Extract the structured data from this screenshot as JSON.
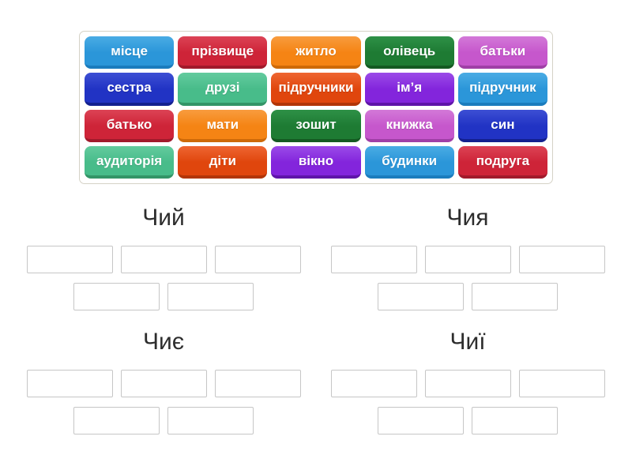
{
  "palette": {
    "lightblue": {
      "top": "#4aace4",
      "base": "#2b96d9",
      "edge": "#1b7cbd"
    },
    "red": {
      "top": "#dc4355",
      "base": "#ce2438",
      "edge": "#a11a2b"
    },
    "orange": {
      "top": "#f89c3e",
      "base": "#f58414",
      "edge": "#ce6a08"
    },
    "darkgreen": {
      "top": "#2e9147",
      "base": "#1e7b33",
      "edge": "#145a22"
    },
    "orchid": {
      "top": "#d379d8",
      "base": "#c657cc",
      "edge": "#9f3fa6"
    },
    "darkblue": {
      "top": "#3d4fd4",
      "base": "#2133c4",
      "edge": "#13208f"
    },
    "seagreen": {
      "top": "#63cb9e",
      "base": "#48bc8a",
      "edge": "#339567"
    },
    "orangered": {
      "top": "#ee6632",
      "base": "#e0460d",
      "edge": "#b23507"
    },
    "violet": {
      "top": "#9b4be8",
      "base": "#8325dc",
      "edge": "#5f14a9"
    }
  },
  "word_bank": {
    "tiles": [
      {
        "label": "місце",
        "color": "lightblue"
      },
      {
        "label": "прізвище",
        "color": "red"
      },
      {
        "label": "житло",
        "color": "orange"
      },
      {
        "label": "олівець",
        "color": "darkgreen"
      },
      {
        "label": "батьки",
        "color": "orchid"
      },
      {
        "label": "сестра",
        "color": "darkblue"
      },
      {
        "label": "друзі",
        "color": "seagreen"
      },
      {
        "label": "підручники",
        "color": "orangered"
      },
      {
        "label": "ім’я",
        "color": "violet"
      },
      {
        "label": "підручник",
        "color": "lightblue"
      },
      {
        "label": "батько",
        "color": "red"
      },
      {
        "label": "мати",
        "color": "orange"
      },
      {
        "label": "зошит",
        "color": "darkgreen"
      },
      {
        "label": "книжка",
        "color": "orchid"
      },
      {
        "label": "син",
        "color": "darkblue"
      },
      {
        "label": "аудиторія",
        "color": "seagreen"
      },
      {
        "label": "діти",
        "color": "orangered"
      },
      {
        "label": "вікно",
        "color": "violet"
      },
      {
        "label": "будинки",
        "color": "lightblue"
      },
      {
        "label": "подруга",
        "color": "red"
      }
    ]
  },
  "groups": [
    {
      "title": "Чий",
      "slot_rows": [
        3,
        2
      ]
    },
    {
      "title": "Чия",
      "slot_rows": [
        3,
        2
      ]
    },
    {
      "title": "Чиє",
      "slot_rows": [
        3,
        2
      ]
    },
    {
      "title": "Чиї",
      "slot_rows": [
        3,
        2
      ]
    }
  ]
}
